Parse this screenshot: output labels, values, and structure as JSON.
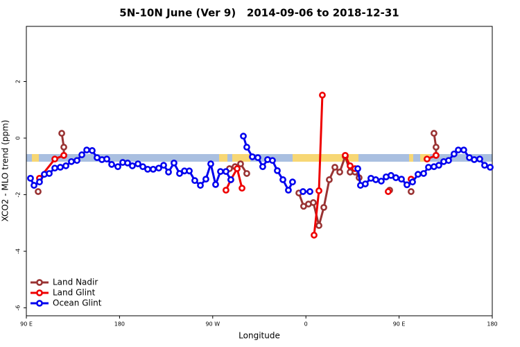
{
  "chart_data": {
    "type": "line",
    "title": "5N-10N June (Ver 9)   2014-09-06 to 2018-12-31",
    "x_label": "Longitude",
    "y_label": "XCO2 - MLO trend (ppm)",
    "xlim": [
      90,
      540
    ],
    "ylim": [
      -6.28,
      3.95
    ],
    "xticks": [
      {
        "value": 90,
        "label": "90 E"
      },
      180,
      {
        "value": 270,
        "label": "90 W"
      },
      {
        "value": 360,
        "label": "0"
      },
      {
        "value": 450,
        "label": "90 E"
      },
      {
        "value": 540,
        "label": "180"
      }
    ],
    "yticks": [
      -6,
      -4,
      -2,
      0,
      2
    ],
    "legend": "bottom-left",
    "series": [
      {
        "name": "Land Nadir",
        "color": "#993333",
        "x": [
          101.4,
          null,
          124.2,
          126.2,
          126.2,
          null,
          286.2,
          291.6,
          296.9,
          302.9,
          null,
          353.2,
          357.8,
          362.5,
          367.2,
          372.6,
          377.3,
          382.6,
          388.0,
          392.7,
          398.0,
          402.7,
          407.4,
          411.4,
          null,
          440.9,
          null,
          461.6,
          null,
          483.7,
          485.7,
          485.7
        ],
        "values": [
          -1.89,
          null,
          0.17,
          -0.32,
          -0.61,
          null,
          -1.08,
          -1.01,
          -0.91,
          -1.25,
          null,
          -1.94,
          -2.41,
          -2.33,
          -2.28,
          -3.09,
          -2.45,
          -1.47,
          -1.03,
          -1.2,
          -0.64,
          -1.2,
          -1.2,
          -1.4,
          null,
          -1.84,
          null,
          -1.89,
          null,
          0.17,
          -0.32,
          -0.61
        ]
      },
      {
        "name": "Land Glint",
        "color": "#ee0000",
        "x": [
          102.7,
          117.5,
          126.2,
          null,
          282.8,
          287.5,
          293.6,
          298.3,
          null,
          367.9,
          372.6,
          375.9,
          null,
          398.0,
          402.7,
          407.4,
          null,
          439.5,
          null,
          461.6,
          null,
          477.0,
          485.7
        ],
        "values": [
          -1.42,
          -0.74,
          -0.61,
          null,
          -1.84,
          -1.47,
          -1.08,
          -1.77,
          null,
          -3.43,
          -1.86,
          1.52,
          null,
          -0.61,
          -0.98,
          -1.08,
          null,
          -1.89,
          null,
          -1.45,
          null,
          -0.74,
          -0.61
        ]
      },
      {
        "name": "Ocean Glint",
        "color": "#0000ee",
        "x": [
          94.0,
          97.4,
          102.7,
          107.4,
          112.1,
          117.5,
          122.8,
          128.2,
          133.5,
          138.9,
          143.6,
          148.3,
          153.6,
          158.3,
          163.0,
          167.7,
          172.4,
          178.4,
          183.1,
          187.8,
          192.4,
          197.8,
          202.5,
          207.2,
          212.5,
          217.9,
          222.6,
          227.3,
          232.6,
          238.0,
          242.7,
          247.4,
          252.7,
          258.1,
          263.4,
          268.1,
          272.8,
          277.5,
          282.8,
          287.5,
          null,
          299.6,
          302.9,
          308.3,
          313.6,
          318.3,
          323.0,
          327.7,
          332.4,
          337.8,
          343.1,
          347.1,
          null,
          357.2,
          363.9,
          null,
          410.1,
          412.7,
          417.4,
          422.8,
          427.5,
          432.8,
          437.5,
          442.2,
          446.9,
          452.3,
          457.6,
          463.0,
          468.3,
          473.7,
          478.4,
          483.7,
          488.4,
          493.1,
          497.8,
          503.1,
          507.2,
          512.5,
          517.9,
          522.6,
          527.9,
          532.6,
          538.0
        ],
        "values": [
          -1.42,
          -1.67,
          -1.55,
          -1.28,
          -1.25,
          -1.06,
          -1.03,
          -0.98,
          -0.83,
          -0.79,
          -0.59,
          -0.42,
          -0.44,
          -0.69,
          -0.76,
          -0.74,
          -0.93,
          -1.01,
          -0.86,
          -0.88,
          -0.98,
          -0.91,
          -1.01,
          -1.1,
          -1.1,
          -1.06,
          -0.96,
          -1.2,
          -0.88,
          -1.25,
          -1.16,
          -1.16,
          -1.5,
          -1.67,
          -1.45,
          -0.91,
          -1.64,
          -1.18,
          -1.18,
          -1.47,
          null,
          0.07,
          -0.32,
          -0.66,
          -0.69,
          -1.01,
          -0.76,
          -0.79,
          -1.15,
          -1.47,
          -1.84,
          -1.55,
          null,
          -1.89,
          -1.89,
          null,
          -1.08,
          -1.67,
          -1.62,
          -1.42,
          -1.47,
          -1.52,
          -1.37,
          -1.32,
          -1.4,
          -1.45,
          -1.65,
          -1.55,
          -1.28,
          -1.25,
          -1.03,
          -1.01,
          -0.96,
          -0.83,
          -0.79,
          -0.56,
          -0.42,
          -0.42,
          -0.69,
          -0.76,
          -0.74,
          -0.96,
          -1.03
        ]
      }
    ]
  }
}
